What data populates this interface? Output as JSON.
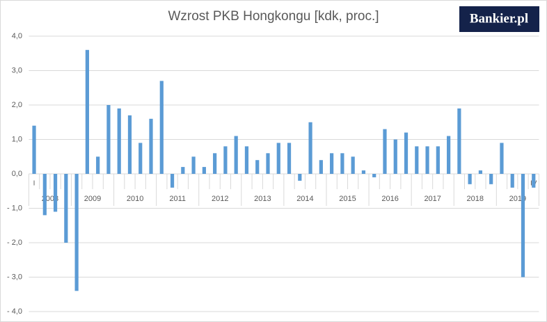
{
  "chart_data": {
    "type": "bar",
    "title": "Wzrost PKB Hongkongu [kdk, proc.]",
    "logo": "Bankier.pl",
    "categories": [
      "I",
      null,
      null,
      null,
      null,
      null,
      null,
      null,
      null,
      null,
      null,
      null,
      null,
      null,
      null,
      null,
      null,
      null,
      null,
      null,
      null,
      null,
      null,
      null,
      null,
      null,
      null,
      null,
      null,
      null,
      null,
      null,
      null,
      null,
      null,
      null,
      null,
      null,
      null,
      null,
      null,
      null,
      null,
      null,
      null,
      null,
      null,
      "IV"
    ],
    "groups": [
      "2008",
      "2009",
      "2010",
      "2011",
      "2012",
      "2013",
      "2014",
      "2015",
      "2016",
      "2017",
      "2018",
      "2019"
    ],
    "values": [
      1.4,
      -1.2,
      -1.1,
      -2.0,
      -3.4,
      3.6,
      0.5,
      2.0,
      1.9,
      1.7,
      0.9,
      1.6,
      2.7,
      -0.4,
      0.2,
      0.5,
      0.2,
      0.6,
      0.8,
      1.1,
      0.8,
      0.4,
      0.6,
      0.9,
      0.9,
      -0.2,
      1.5,
      0.4,
      0.6,
      0.6,
      0.5,
      0.1,
      -0.1,
      1.3,
      1.0,
      1.2,
      0.8,
      0.8,
      0.8,
      1.1,
      1.9,
      -0.3,
      0.1,
      -0.3,
      0.9,
      -0.4,
      -3.0,
      -0.4
    ],
    "color": "#5b9bd5",
    "ylim": [
      -4,
      4
    ],
    "yticks": [
      {
        "value": -4,
        "label": "- 4,0"
      },
      {
        "value": -3,
        "label": "- 3,0"
      },
      {
        "value": -2,
        "label": "- 2,0"
      },
      {
        "value": -1,
        "label": "- 1,0"
      },
      {
        "value": 0,
        "label": "0,0"
      },
      {
        "value": 1,
        "label": "1,0"
      },
      {
        "value": 2,
        "label": "2,0"
      },
      {
        "value": 3,
        "label": "3,0"
      },
      {
        "value": 4,
        "label": "4,0"
      }
    ],
    "grid": true
  }
}
